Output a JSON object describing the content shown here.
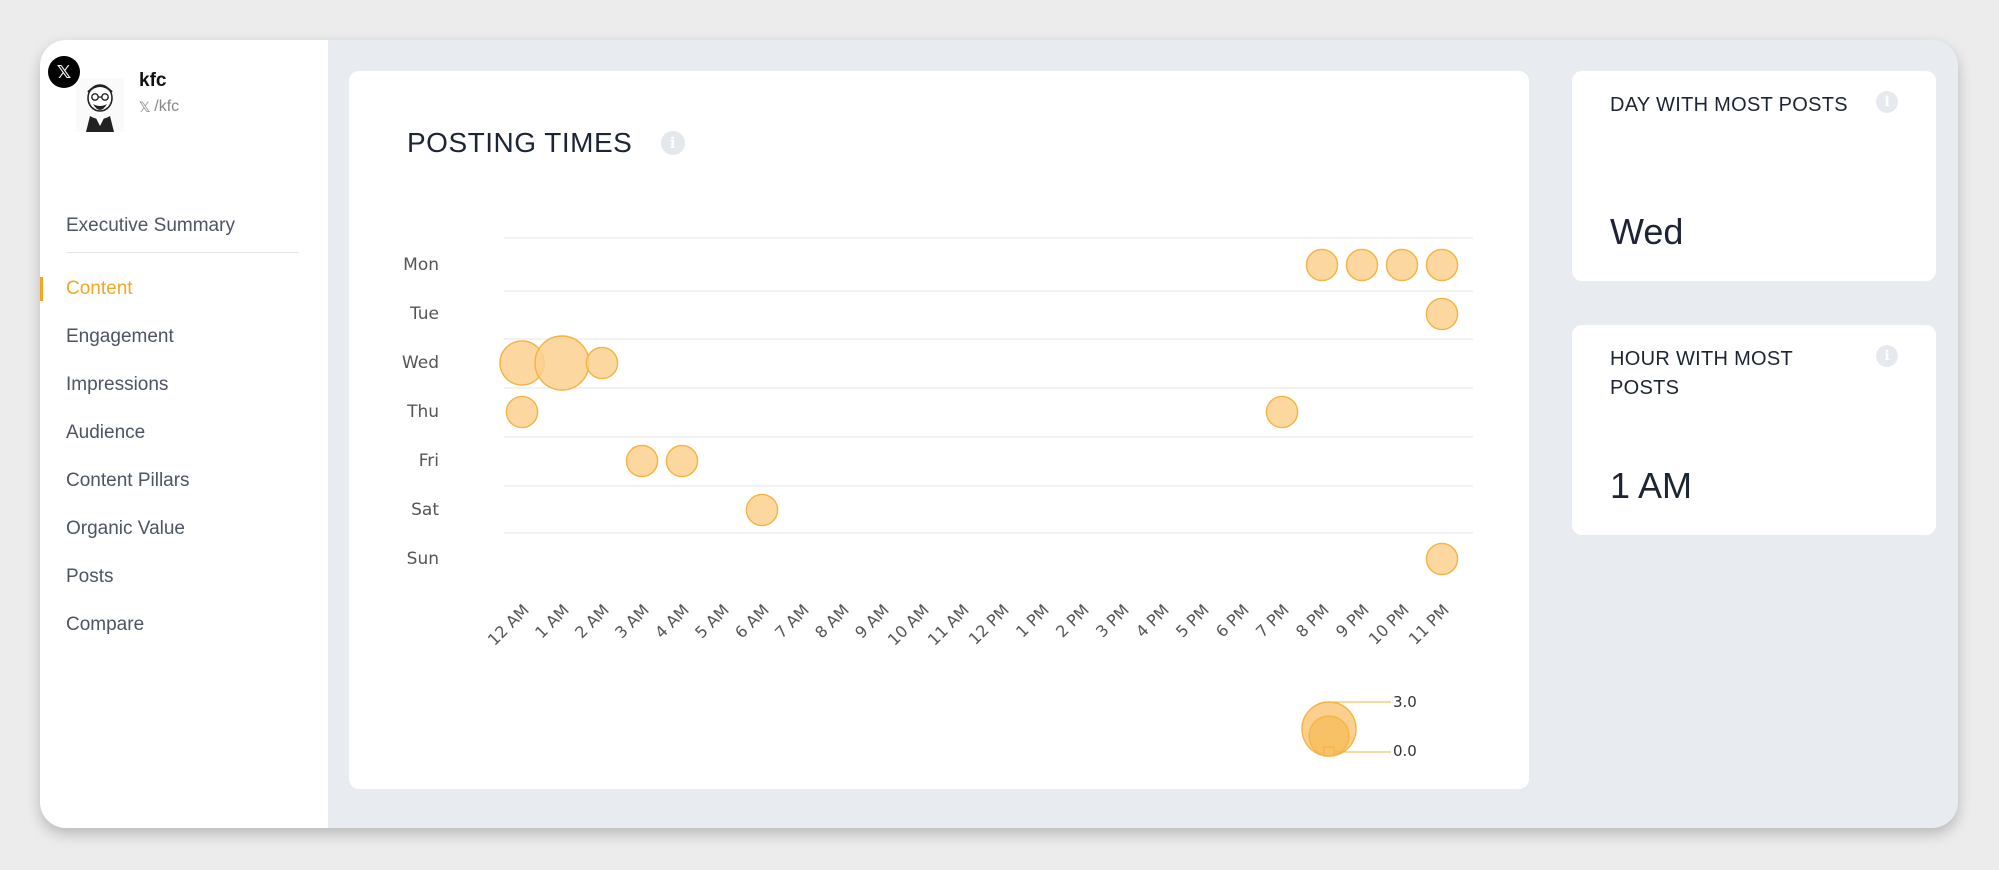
{
  "profile": {
    "badge_icon": "x-logo-icon",
    "name": "kfc",
    "handle": "/kfc",
    "handle_icon": "x-logo-icon"
  },
  "sidebar": {
    "items": [
      {
        "label": "Executive Summary"
      },
      {
        "label": "Content",
        "active": true
      },
      {
        "label": "Engagement"
      },
      {
        "label": "Impressions"
      },
      {
        "label": "Audience"
      },
      {
        "label": "Content Pillars"
      },
      {
        "label": "Organic Value"
      },
      {
        "label": "Posts"
      },
      {
        "label": "Compare"
      }
    ]
  },
  "chart_title": "POSTING TIMES",
  "chart_data": {
    "type": "bubble",
    "title": "POSTING TIMES",
    "y_categories": [
      "Mon",
      "Tue",
      "Wed",
      "Thu",
      "Fri",
      "Sat",
      "Sun"
    ],
    "x_categories": [
      "12 AM",
      "1 AM",
      "2 AM",
      "3 AM",
      "4 AM",
      "5 AM",
      "6 AM",
      "7 AM",
      "8 AM",
      "9 AM",
      "10 AM",
      "11 AM",
      "12 PM",
      "1 PM",
      "2 PM",
      "3 PM",
      "4 PM",
      "5 PM",
      "6 PM",
      "7 PM",
      "8 PM",
      "9 PM",
      "10 PM",
      "11 PM"
    ],
    "points": [
      {
        "day": "Mon",
        "hour": "8 PM",
        "value": 1
      },
      {
        "day": "Mon",
        "hour": "9 PM",
        "value": 1
      },
      {
        "day": "Mon",
        "hour": "10 PM",
        "value": 1
      },
      {
        "day": "Mon",
        "hour": "11 PM",
        "value": 1
      },
      {
        "day": "Tue",
        "hour": "11 PM",
        "value": 1
      },
      {
        "day": "Wed",
        "hour": "12 AM",
        "value": 2
      },
      {
        "day": "Wed",
        "hour": "1 AM",
        "value": 3
      },
      {
        "day": "Wed",
        "hour": "2 AM",
        "value": 1
      },
      {
        "day": "Thu",
        "hour": "12 AM",
        "value": 1
      },
      {
        "day": "Thu",
        "hour": "7 PM",
        "value": 1
      },
      {
        "day": "Fri",
        "hour": "3 AM",
        "value": 1
      },
      {
        "day": "Fri",
        "hour": "4 AM",
        "value": 1
      },
      {
        "day": "Sat",
        "hour": "6 AM",
        "value": 1
      },
      {
        "day": "Sun",
        "hour": "11 PM",
        "value": 1
      }
    ],
    "size_legend": {
      "max_label": "3.0",
      "min_label": "0.0"
    },
    "bubble_color": "#fbd08f",
    "bubble_stroke": "#f5b342",
    "grid_color": "#e6e6e6"
  },
  "stats": {
    "day": {
      "label": "DAY WITH MOST POSTS",
      "value": "Wed"
    },
    "hour": {
      "label": "HOUR WITH MOST POSTS",
      "value": "1 AM"
    }
  },
  "colors": {
    "accent": "#f5a623"
  }
}
